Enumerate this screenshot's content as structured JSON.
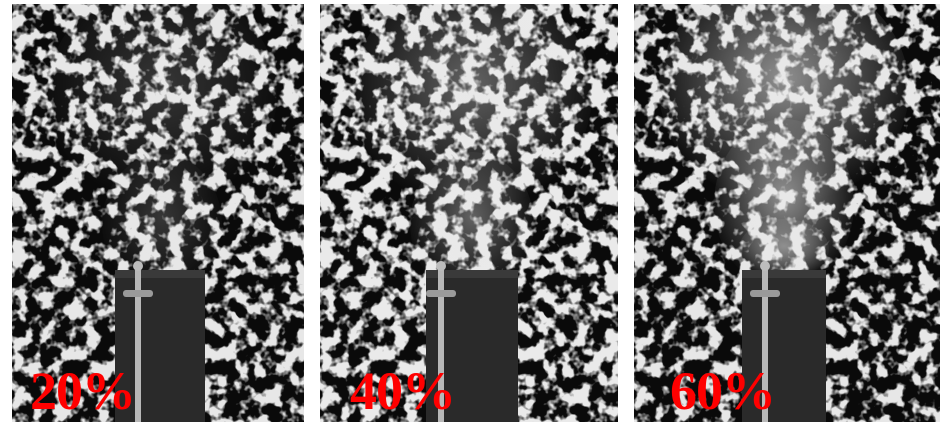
{
  "panels": [
    {
      "label": "20%",
      "smoke_opacity": 0.2
    },
    {
      "label": "40%",
      "smoke_opacity": 0.4
    },
    {
      "label": "60%",
      "smoke_opacity": 0.6
    }
  ],
  "colors": {
    "label": "#ff0000",
    "background": "#ffffff",
    "foliage_dark": "#0a0a0a",
    "foliage_light": "#cfcfcf",
    "chimney": "#2a2a2a",
    "smoke": "#e6e6e6"
  }
}
